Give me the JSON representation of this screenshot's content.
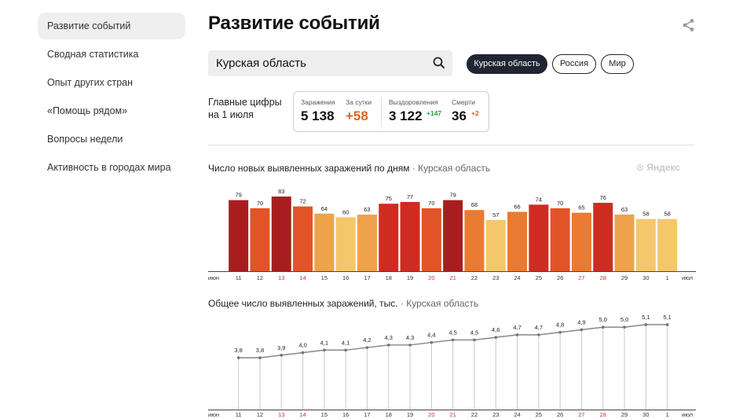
{
  "sidebar": {
    "items": [
      {
        "label": "Развитие событий",
        "active": true
      },
      {
        "label": "Сводная статистика"
      },
      {
        "label": "Опыт других стран"
      },
      {
        "label": "«Помощь рядом»"
      },
      {
        "label": "Вопросы недели"
      },
      {
        "label": "Активность в городах мира"
      }
    ]
  },
  "header": {
    "title": "Развитие событий",
    "share_icon": "share-icon"
  },
  "search": {
    "value": "Курская область",
    "icon": "search-icon"
  },
  "filters": [
    {
      "label": "Курская область",
      "active": true
    },
    {
      "label": "Россия",
      "active": false
    },
    {
      "label": "Мир",
      "active": false
    }
  ],
  "summary": {
    "label_line1": "Главные цифры",
    "label_line2": "на 1 июля",
    "infections_label": "Заражения",
    "infections_value": "5 138",
    "per_day_label": "За сутки",
    "per_day_value": "+58",
    "recovered_label": "Выздоровления",
    "recovered_value": "3 122",
    "recovered_delta": "+147",
    "deaths_label": "Смерти",
    "deaths_value": "36",
    "deaths_delta": "+2"
  },
  "watermark": "Яндекс",
  "colors": {
    "accent": "#e8601c",
    "green": "#2a9d3a",
    "chip_active": "#1f2532",
    "weekend": "#c0392b"
  },
  "chart_data": [
    {
      "type": "bar",
      "title": "Число новых выявленных заражений по дням",
      "region": "· Курская область",
      "first_label": "июн",
      "last_label": "июл",
      "categories": [
        "11",
        "12",
        "13",
        "14",
        "15",
        "16",
        "17",
        "18",
        "19",
        "20",
        "21",
        "22",
        "23",
        "24",
        "25",
        "26",
        "27",
        "28",
        "29",
        "30",
        "1"
      ],
      "weekend": [
        "13",
        "14",
        "20",
        "21",
        "27",
        "28"
      ],
      "values": [
        79,
        70,
        83,
        72,
        64,
        60,
        63,
        75,
        77,
        70,
        79,
        68,
        57,
        66,
        74,
        70,
        65,
        76,
        63,
        58,
        58
      ],
      "ylim": [
        0,
        90
      ]
    },
    {
      "type": "line",
      "title": "Общее число выявленных заражений, тыс.",
      "region": "· Курская область",
      "first_label": "июн",
      "last_label": "июл",
      "categories": [
        "11",
        "12",
        "13",
        "14",
        "15",
        "16",
        "17",
        "18",
        "19",
        "20",
        "21",
        "22",
        "23",
        "24",
        "25",
        "26",
        "27",
        "28",
        "29",
        "30",
        "1"
      ],
      "weekend": [
        "13",
        "14",
        "20",
        "21",
        "27",
        "28"
      ],
      "values": [
        3.8,
        3.8,
        3.9,
        4.0,
        4.1,
        4.1,
        4.2,
        4.3,
        4.3,
        4.4,
        4.5,
        4.5,
        4.6,
        4.7,
        4.7,
        4.8,
        4.9,
        5.0,
        5.0,
        5.1,
        5.1
      ],
      "value_labels": [
        "3,8",
        "3,8",
        "3,9",
        "4,0",
        "4,1",
        "4,1",
        "4,2",
        "4,3",
        "4,3",
        "4,4",
        "4,5",
        "4,5",
        "4,6",
        "4,7",
        "4,7",
        "4,8",
        "4,9",
        "5,0",
        "5,0",
        "5,1",
        "5,1"
      ],
      "ylim": [
        0,
        5.5
      ]
    }
  ]
}
